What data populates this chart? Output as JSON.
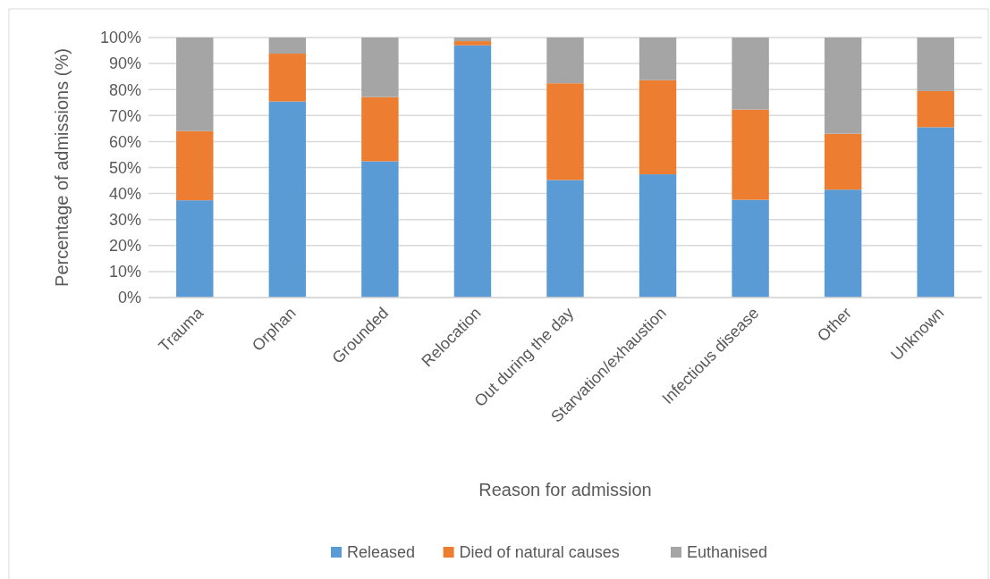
{
  "chart_data": {
    "type": "bar",
    "stacked": true,
    "xlabel": "Reason for admission",
    "ylabel": "Percentage of admissions (%)",
    "categories": [
      "Trauma",
      "Orphan",
      "Grounded",
      "Relocation",
      "Out during the day",
      "Starvation/exhaustion",
      "Infectious disease",
      "Other",
      "Unknown"
    ],
    "series": [
      {
        "name": "Released",
        "color": "#5b9bd5",
        "values": [
          37.4,
          75.4,
          52.4,
          97.0,
          45.2,
          47.4,
          37.6,
          41.5,
          65.5
        ]
      },
      {
        "name": "Died of natural causes",
        "color": "#ed7d31",
        "values": [
          26.6,
          18.4,
          24.7,
          1.6,
          37.2,
          36.2,
          34.7,
          21.5,
          13.9
        ]
      },
      {
        "name": "Euthanised",
        "color": "#a5a5a5",
        "values": [
          36.0,
          6.2,
          22.9,
          1.4,
          17.6,
          16.4,
          27.7,
          37.0,
          20.6
        ]
      }
    ],
    "ylim": [
      0,
      100
    ],
    "yticks": [
      {
        "value": 0,
        "label": "0%"
      },
      {
        "value": 10,
        "label": "10%"
      },
      {
        "value": 20,
        "label": "20%"
      },
      {
        "value": 30,
        "label": "30%"
      },
      {
        "value": 40,
        "label": "40%"
      },
      {
        "value": 50,
        "label": "50%"
      },
      {
        "value": 60,
        "label": "60%"
      },
      {
        "value": 70,
        "label": "70%"
      },
      {
        "value": 80,
        "label": "80%"
      },
      {
        "value": 90,
        "label": "90%"
      },
      {
        "value": 100,
        "label": "100%"
      }
    ],
    "grid": "y",
    "legend": "bottom"
  }
}
